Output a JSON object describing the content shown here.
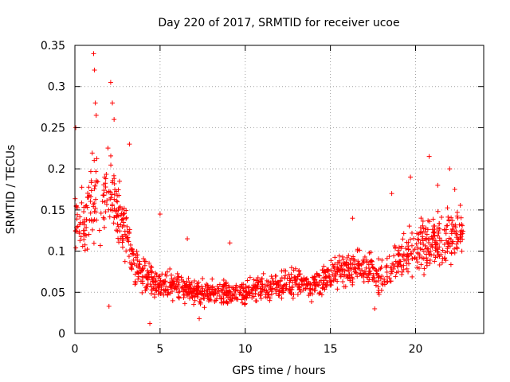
{
  "chart_data": {
    "type": "scatter",
    "title": "Day 220 of 2017, SRMTID for receiver ucoe",
    "xlabel": "GPS time / hours",
    "ylabel": "SRMTID / TECUs",
    "xlim": [
      0,
      24
    ],
    "ylim": [
      0,
      0.35
    ],
    "xticks": [
      0,
      5,
      10,
      15,
      20
    ],
    "xtick_labels": [
      "0",
      "5",
      "10",
      "15",
      "20"
    ],
    "yticks": [
      0,
      0.05,
      0.1,
      0.15,
      0.2,
      0.25,
      0.3,
      0.35
    ],
    "ytick_labels": [
      "0",
      "0.05",
      "0.1",
      "0.15",
      "0.2",
      "0.25",
      "0.3",
      "0.35"
    ],
    "grid": true,
    "marker": "+",
    "marker_color": "#ff0000",
    "series": [
      {
        "name": "SRMTID",
        "x_range": [
          0,
          22.8
        ],
        "points_per_hour": 60,
        "envelope": [
          {
            "x": 0.0,
            "y": 0.14,
            "spread": 0.05
          },
          {
            "x": 0.5,
            "y": 0.13,
            "spread": 0.05
          },
          {
            "x": 1.0,
            "y": 0.17,
            "spread": 0.07
          },
          {
            "x": 1.5,
            "y": 0.15,
            "spread": 0.06
          },
          {
            "x": 2.0,
            "y": 0.18,
            "spread": 0.06
          },
          {
            "x": 2.5,
            "y": 0.15,
            "spread": 0.05
          },
          {
            "x": 3.0,
            "y": 0.12,
            "spread": 0.05
          },
          {
            "x": 3.5,
            "y": 0.08,
            "spread": 0.03
          },
          {
            "x": 4.0,
            "y": 0.07,
            "spread": 0.03
          },
          {
            "x": 5.0,
            "y": 0.06,
            "spread": 0.025
          },
          {
            "x": 6.0,
            "y": 0.06,
            "spread": 0.025
          },
          {
            "x": 7.0,
            "y": 0.05,
            "spread": 0.02
          },
          {
            "x": 8.0,
            "y": 0.05,
            "spread": 0.02
          },
          {
            "x": 10.0,
            "y": 0.05,
            "spread": 0.02
          },
          {
            "x": 12.0,
            "y": 0.06,
            "spread": 0.025
          },
          {
            "x": 14.0,
            "y": 0.06,
            "spread": 0.025
          },
          {
            "x": 15.0,
            "y": 0.07,
            "spread": 0.03
          },
          {
            "x": 16.0,
            "y": 0.08,
            "spread": 0.03
          },
          {
            "x": 17.0,
            "y": 0.08,
            "spread": 0.03
          },
          {
            "x": 18.0,
            "y": 0.07,
            "spread": 0.03
          },
          {
            "x": 19.0,
            "y": 0.09,
            "spread": 0.035
          },
          {
            "x": 20.0,
            "y": 0.1,
            "spread": 0.04
          },
          {
            "x": 21.0,
            "y": 0.11,
            "spread": 0.05
          },
          {
            "x": 22.0,
            "y": 0.12,
            "spread": 0.05
          },
          {
            "x": 22.8,
            "y": 0.13,
            "spread": 0.04
          }
        ],
        "peaks": [
          {
            "x": 0.05,
            "y": 0.25
          },
          {
            "x": 1.1,
            "y": 0.34
          },
          {
            "x": 1.15,
            "y": 0.32
          },
          {
            "x": 1.2,
            "y": 0.28
          },
          {
            "x": 1.25,
            "y": 0.265
          },
          {
            "x": 2.1,
            "y": 0.305
          },
          {
            "x": 2.2,
            "y": 0.28
          },
          {
            "x": 2.3,
            "y": 0.26
          },
          {
            "x": 3.2,
            "y": 0.23
          },
          {
            "x": 5.0,
            "y": 0.145
          },
          {
            "x": 6.6,
            "y": 0.115
          },
          {
            "x": 9.1,
            "y": 0.11
          },
          {
            "x": 16.3,
            "y": 0.14
          },
          {
            "x": 18.6,
            "y": 0.17
          },
          {
            "x": 19.7,
            "y": 0.19
          },
          {
            "x": 20.8,
            "y": 0.215
          },
          {
            "x": 21.3,
            "y": 0.18
          },
          {
            "x": 22.0,
            "y": 0.2
          },
          {
            "x": 22.3,
            "y": 0.175
          }
        ],
        "lows": [
          {
            "x": 4.4,
            "y": 0.012
          },
          {
            "x": 7.3,
            "y": 0.018
          },
          {
            "x": 2.0,
            "y": 0.033
          },
          {
            "x": 17.6,
            "y": 0.03
          }
        ]
      }
    ]
  }
}
